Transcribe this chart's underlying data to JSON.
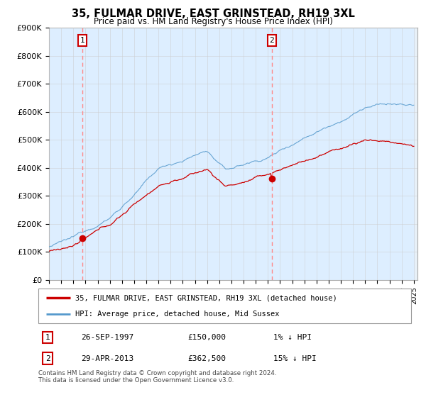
{
  "title": "35, FULMAR DRIVE, EAST GRINSTEAD, RH19 3XL",
  "subtitle": "Price paid vs. HM Land Registry's House Price Index (HPI)",
  "ylim": [
    0,
    900000
  ],
  "yticks": [
    0,
    100000,
    200000,
    300000,
    400000,
    500000,
    600000,
    700000,
    800000,
    900000
  ],
  "ytick_labels": [
    "£0",
    "£100K",
    "£200K",
    "£300K",
    "£400K",
    "£500K",
    "£600K",
    "£700K",
    "£800K",
    "£900K"
  ],
  "line1_color": "#cc0000",
  "line2_color": "#5599cc",
  "fill_color": "#ddeeff",
  "vline_color": "#ff8888",
  "point_color": "#cc0000",
  "sale1_year": 1997.73,
  "sale1_price": 150000,
  "sale2_year": 2013.32,
  "sale2_price": 362500,
  "legend1": "35, FULMAR DRIVE, EAST GRINSTEAD, RH19 3XL (detached house)",
  "legend2": "HPI: Average price, detached house, Mid Sussex",
  "table_rows": [
    [
      "1",
      "26-SEP-1997",
      "£150,000",
      "1% ↓ HPI"
    ],
    [
      "2",
      "29-APR-2013",
      "£362,500",
      "15% ↓ HPI"
    ]
  ],
  "footnote1": "Contains HM Land Registry data © Crown copyright and database right 2024.",
  "footnote2": "This data is licensed under the Open Government Licence v3.0.",
  "bg_color": "#ffffff",
  "chart_bg": "#e8f0f8",
  "grid_color": "#cccccc"
}
